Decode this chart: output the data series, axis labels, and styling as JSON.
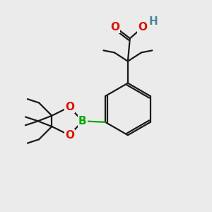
{
  "background_color": "#ebebeb",
  "bond_color": "#1a1a1a",
  "atom_colors": {
    "O": "#dd1100",
    "B": "#00aa00",
    "H": "#4a8899",
    "C": "#1a1a1a"
  },
  "line_width": 1.6,
  "figsize": [
    3.0,
    3.0
  ],
  "dpi": 100
}
